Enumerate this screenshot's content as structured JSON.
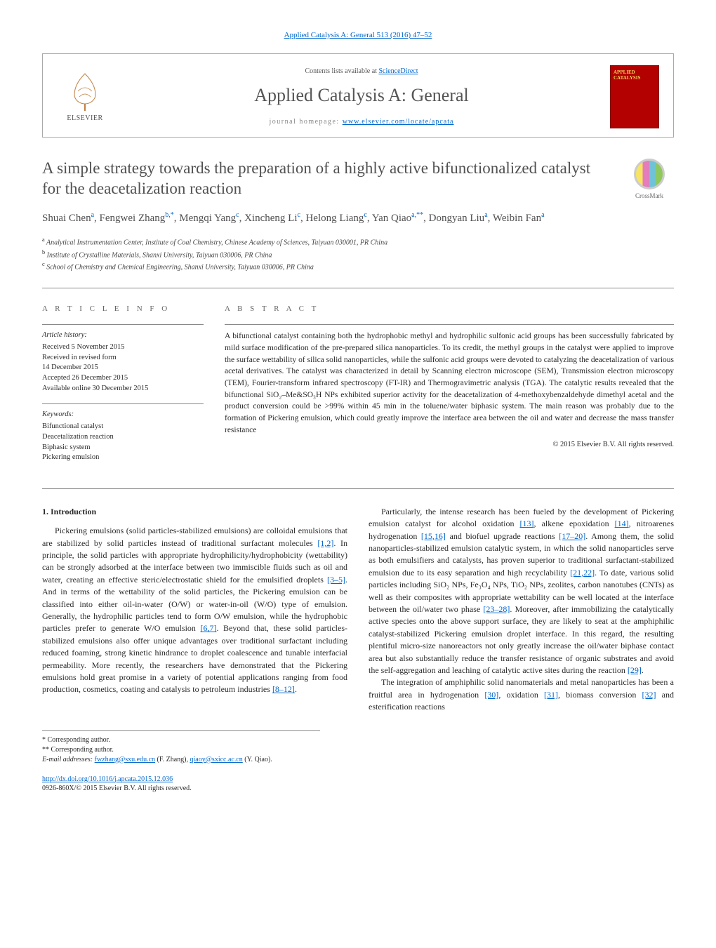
{
  "journal_ref": {
    "text": "Applied Catalysis A: General 513 (2016) 47–52",
    "url_label": "Applied Catalysis A: General 513 (2016) 47–52"
  },
  "header": {
    "elsevier_label": "ELSEVIER",
    "contents_prefix": "Contents lists available at ",
    "contents_link": "ScienceDirect",
    "journal_name": "Applied Catalysis A: General",
    "homepage_prefix": "journal homepage: ",
    "homepage_link": "www.elsevier.com/locate/apcata",
    "cover_text": "APPLIED CATALYSIS"
  },
  "title": "A simple strategy towards the preparation of a highly active bifunctionalized catalyst for the deacetalization reaction",
  "crossmark_label": "CrossMark",
  "authors_html": "Shuai Chen<sup>a</sup>, Fengwei Zhang<sup>b,*</sup>, Mengqi Yang<sup>c</sup>, Xincheng Li<sup>c</sup>, Helong Liang<sup>c</sup>, Yan Qiao<sup>a,**</sup>, Dongyan Liu<sup>a</sup>, Weibin Fan<sup>a</sup>",
  "affiliations": [
    {
      "marker": "a",
      "text": "Analytical Instrumentation Center, Institute of Coal Chemistry, Chinese Academy of Sciences, Taiyuan 030001, PR China"
    },
    {
      "marker": "b",
      "text": "Institute of Crystalline Materials, Shanxi University, Taiyuan 030006, PR China"
    },
    {
      "marker": "c",
      "text": "School of Chemistry and Chemical Engineering, Shanxi University, Taiyuan 030006, PR China"
    }
  ],
  "article_info": {
    "heading": "a r t i c l e   i n f o",
    "history_label": "Article history:",
    "history": [
      "Received 5 November 2015",
      "Received in revised form",
      "14 December 2015",
      "Accepted 26 December 2015",
      "Available online 30 December 2015"
    ],
    "keywords_label": "Keywords:",
    "keywords": [
      "Bifunctional catalyst",
      "Deacetalization reaction",
      "Biphasic system",
      "Pickering emulsion"
    ]
  },
  "abstract": {
    "heading": "a b s t r a c t",
    "body": "A bifunctional catalyst containing both the hydrophobic methyl and hydrophilic sulfonic acid groups has been successfully fabricated by mild surface modification of the pre-prepared silica nanoparticles. To its credit, the methyl groups in the catalyst were applied to improve the surface wettability of silica solid nanoparticles, while the sulfonic acid groups were devoted to catalyzing the deacetalization of various acetal derivatives. The catalyst was characterized in detail by Scanning electron microscope (SEM), Transmission electron microscopy (TEM), Fourier-transform infrared spectroscopy (FT-IR) and Thermogravimetric analysis (TGA). The catalytic results revealed that the bifunctional SiO₂–Me&SO₃H NPs exhibited superior activity for the deacetalization of 4-methoxybenzaldehyde dimethyl acetal and the product conversion could be >99% within 45 min in the toluene/water biphasic system. The main reason was probably due to the formation of Pickering emulsion, which could greatly improve the interface area between the oil and water and decrease the mass transfer resistance",
    "copyright": "© 2015 Elsevier B.V. All rights reserved."
  },
  "body": {
    "section_heading": "1.  Introduction",
    "p1": "Pickering emulsions (solid particles-stabilized emulsions) are colloidal emulsions that are stabilized by solid particles instead of traditional surfactant molecules [1,2]. In principle, the solid particles with appropriate hydrophilicity/hydrophobicity (wettability) can be strongly adsorbed at the interface between two immiscible fluids such as oil and water, creating an effective steric/electrostatic shield for the emulsified droplets [3–5]. And in terms of the wettability of the solid particles, the Pickering emulsion can be classified into either oil-in-water (O/W) or water-in-oil (W/O) type of emulsion. Generally, the hydrophilic particles tend to form O/W emulsion, while the hydrophobic particles prefer to generate W/O emulsion [6,7]. Beyond that, these solid particles-stabilized emulsions also offer unique advantages over traditional surfactant including reduced foaming, strong kinetic hindrance to droplet coalescence and tunable interfacial permeability. More recently, the researchers have demonstrated that the Pickering emulsions hold great promise in a variety of potential applications ranging from food production, cosmetics, coating and catalysis to petroleum industries [8–12].",
    "p2": "Particularly, the intense research has been fueled by the development of Pickering emulsion catalyst for alcohol oxidation [13], alkene epoxidation [14], nitroarenes hydrogenation [15,16] and biofuel upgrade reactions [17–20]. Among them, the solid nanoparticles-stabilized emulsion catalytic system, in which the solid nanoparticles serve as both emulsifiers and catalysts, has proven superior to traditional surfactant-stabilized emulsion due to its easy separation and high recyclability [21,22]. To date, various solid particles including SiO₂ NPs, Fe₃O₄ NPs, TiO₂ NPs, zeolites, carbon nanotubes (CNTs) as well as their composites with appropriate wettability can be well located at the interface between the oil/water two phase [23–28]. Moreover, after immobilizing the catalytically active species onto the above support surface, they are likely to seat at the amphiphilic catalyst-stabilized Pickering emulsion droplet interface. In this regard, the resulting plentiful micro-size nanoreactors not only greatly increase the oil/water biphase contact area but also substantially reduce the transfer resistance of organic substrates and avoid the self-aggregation and leaching of catalytic active sites during the reaction [29].",
    "p3": "The integration of amphiphilic solid nanomaterials and metal nanoparticles has been a fruitful area in hydrogenation [30], oxidation [31], biomass conversion [32] and esterification reactions"
  },
  "footnotes": {
    "star1": "* Corresponding author.",
    "star2": "** Corresponding author.",
    "email_prefix": "E-mail addresses: ",
    "email1": "fwzhang@sxu.edu.cn",
    "email1_owner": " (F. Zhang), ",
    "email2": "qiaoy@sxicc.ac.cn",
    "email2_owner": " (Y. Qiao)."
  },
  "doi": {
    "link": "http://dx.doi.org/10.1016/j.apcata.2015.12.036",
    "line2": "0926-860X/© 2015 Elsevier B.V. All rights reserved."
  },
  "refs": {
    "r12": "[1,2]",
    "r35": "[3–5]",
    "r67": "[6,7]",
    "r812": "[8–12]",
    "r13": "[13]",
    "r14": "[14]",
    "r1516": "[15,16]",
    "r1720": "[17–20]",
    "r2122": "[21,22]",
    "r2328": "[23–28]",
    "r29": "[29]",
    "r30": "[30]",
    "r31": "[31]",
    "r32": "[32]"
  }
}
